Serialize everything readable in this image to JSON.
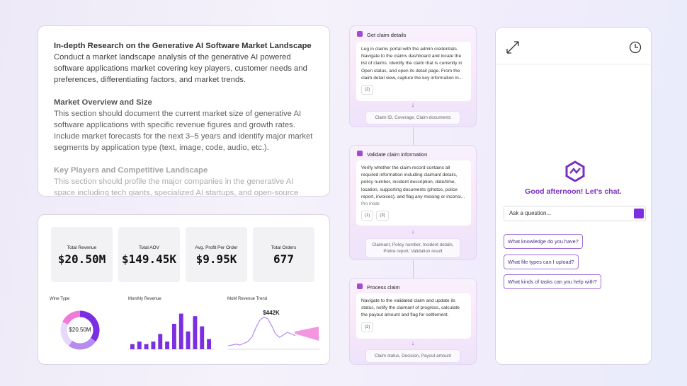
{
  "research": {
    "title": "In-depth Research on the Generative AI Software Market Landscape",
    "intro": "Conduct a market landscape analysis of the generative AI powered software applications market covering key players, customer needs and preferences, differentiating factors, and market trends.",
    "sections": [
      {
        "heading": "Market Overview and Size",
        "body": "This section should document the current market size of generative AI software applications with specific revenue figures and growth rates. Include market forecasts for the next 3–5 years and identify major market segments by application type (text, image, code, audio, etc.)."
      },
      {
        "heading": "Key Players and Competitive Landscape",
        "body": "This section should profile the major companies in the generative AI space including tech giants, specialized AI startups, and open-source initiatives."
      }
    ]
  },
  "dashboard": {
    "kpis": [
      {
        "label": "Total Revenue",
        "value": "$20.50M"
      },
      {
        "label": "Total AOV",
        "value": "$149.45K"
      },
      {
        "label": "Avg. Profit Per Order",
        "value": "$9.95K"
      },
      {
        "label": "Total Orders",
        "value": "677"
      }
    ],
    "wine_type": {
      "title": "Wine Type",
      "center_label": "$20.50M",
      "values": [
        35,
        25,
        22,
        18
      ]
    },
    "monthly_revenue": {
      "title": "Monthly Revenue",
      "values": [
        2,
        3,
        2,
        3,
        6,
        3,
        10,
        14,
        7,
        13,
        9,
        4
      ]
    },
    "mom_trend": {
      "title": "MoM Revenue Trend",
      "annotation": "$442K",
      "values": [
        4,
        5,
        6,
        5,
        7,
        9,
        14,
        25,
        34,
        38,
        36,
        28,
        18,
        14,
        17,
        20,
        18,
        16
      ]
    }
  },
  "workflow": {
    "steps": [
      {
        "title": "Get claim details",
        "prompt": "Log in claims portal with the admin credentials. Navigate to the claims dashboard and locate the list of claims. Identify the claim that is currently in Open status, and open its detail page. From the claim detail view, capture the key information in...",
        "tags": [
          "(2)"
        ],
        "outputs": "Claim ID, Coverage, Claim documents"
      },
      {
        "title": "Validate claim information",
        "prompt": "Verify whether the claim record contains all required information including claimant details, policy number, incident description, date/time, location, supporting documents (photos, police report, invoices), and flag any missing or inconsi...",
        "mode": "Pro mode",
        "tags": [
          "(1)",
          "(3)"
        ],
        "outputs": "Claimant, Policy number, Incident details, Police report, Validation result"
      },
      {
        "title": "Process claim",
        "prompt": "Navigate to the validated claim and update its status, notify the claimant of progress, calculate the payout amount and flag for settlement.",
        "tags": [
          "(2)"
        ],
        "outputs": "Claim status, Decision, Payout amount"
      }
    ]
  },
  "chat": {
    "greeting": "Good afternoon! Let's chat.",
    "placeholder": "Ask a question...",
    "suggestions": [
      "What knowledge do you have?",
      "What file types can I upload?",
      "What kinds of tasks can you help with?"
    ]
  }
}
